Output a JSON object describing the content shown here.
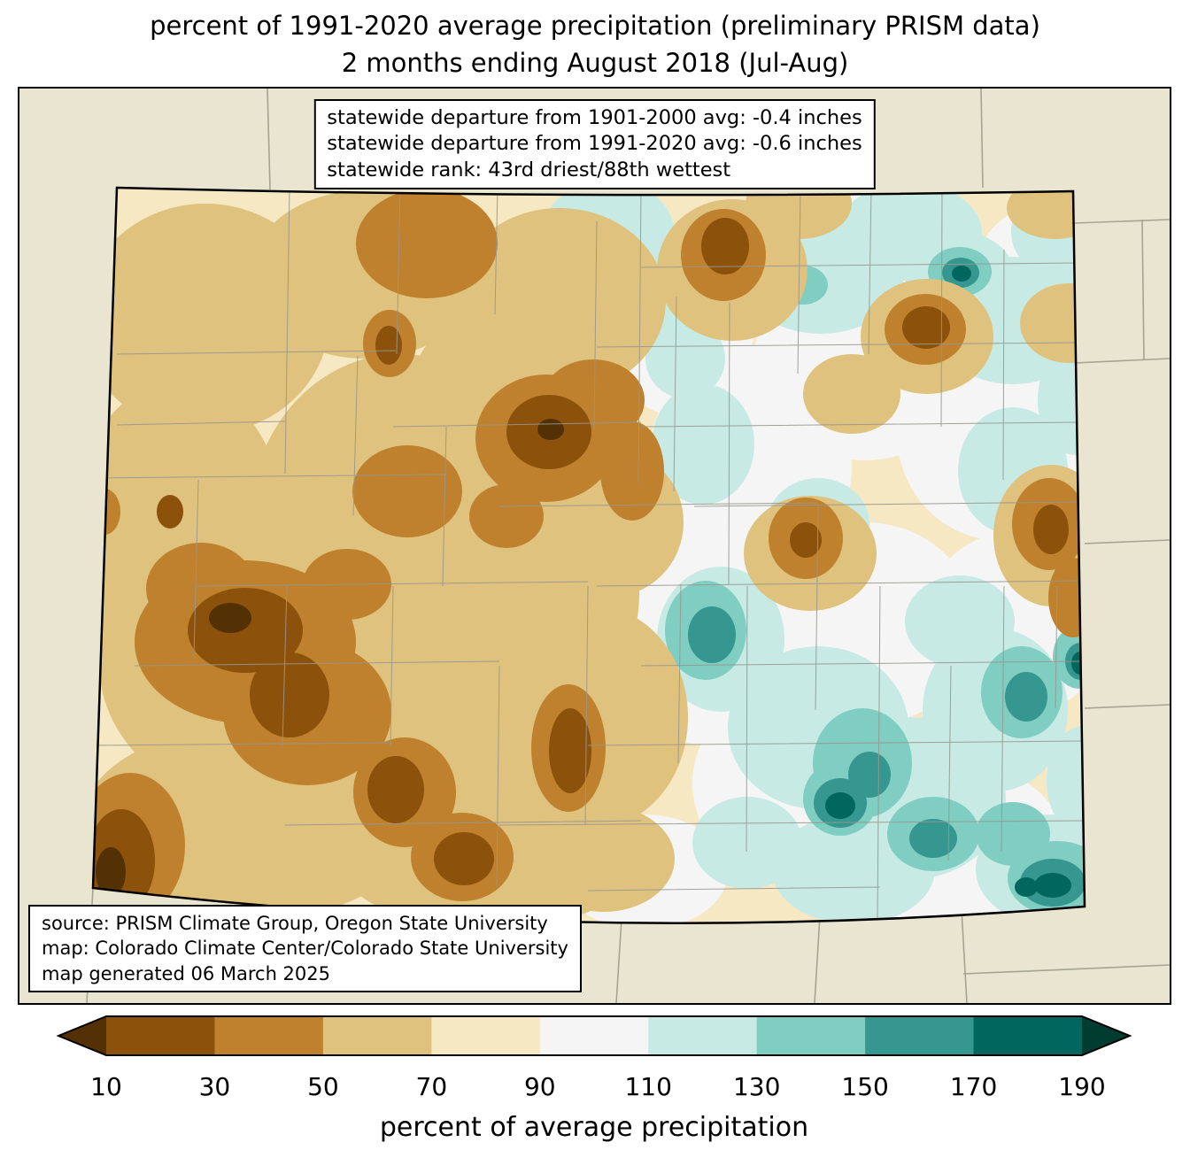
{
  "header": {
    "title_line1": "percent of 1991-2020 average precipitation (preliminary PRISM data)",
    "title_line2": "2 months ending August 2018 (Jul-Aug)"
  },
  "stats_box": {
    "lines": [
      "statewide departure from 1901-2000 avg: -0.4 inches",
      "statewide departure from 1991-2020 avg: -0.6 inches",
      "statewide rank: 43rd driest/88th wettest"
    ]
  },
  "source_box": {
    "lines": [
      "source: PRISM Climate Group, Oregon State University",
      "map: Colorado Climate Center/Colorado State University",
      "map generated 06 March 2025"
    ]
  },
  "colorbar": {
    "label": "percent of average precipitation",
    "tick_labels": [
      "10",
      "30",
      "50",
      "70",
      "90",
      "110",
      "130",
      "150",
      "170",
      "190"
    ],
    "segment_colors": [
      "#8c510a",
      "#bf812d",
      "#dfc27d",
      "#f6e8c3",
      "#f5f5f5",
      "#c7eae5",
      "#80cdc1",
      "#35978f",
      "#01665e"
    ],
    "arrow_left_color": "#543005",
    "arrow_right_color": "#003c30"
  },
  "map": {
    "region": "Colorado",
    "background_color": "#e9e5d0",
    "dry_extreme_color": "#543005",
    "wet_extreme_color": "#003c30"
  }
}
